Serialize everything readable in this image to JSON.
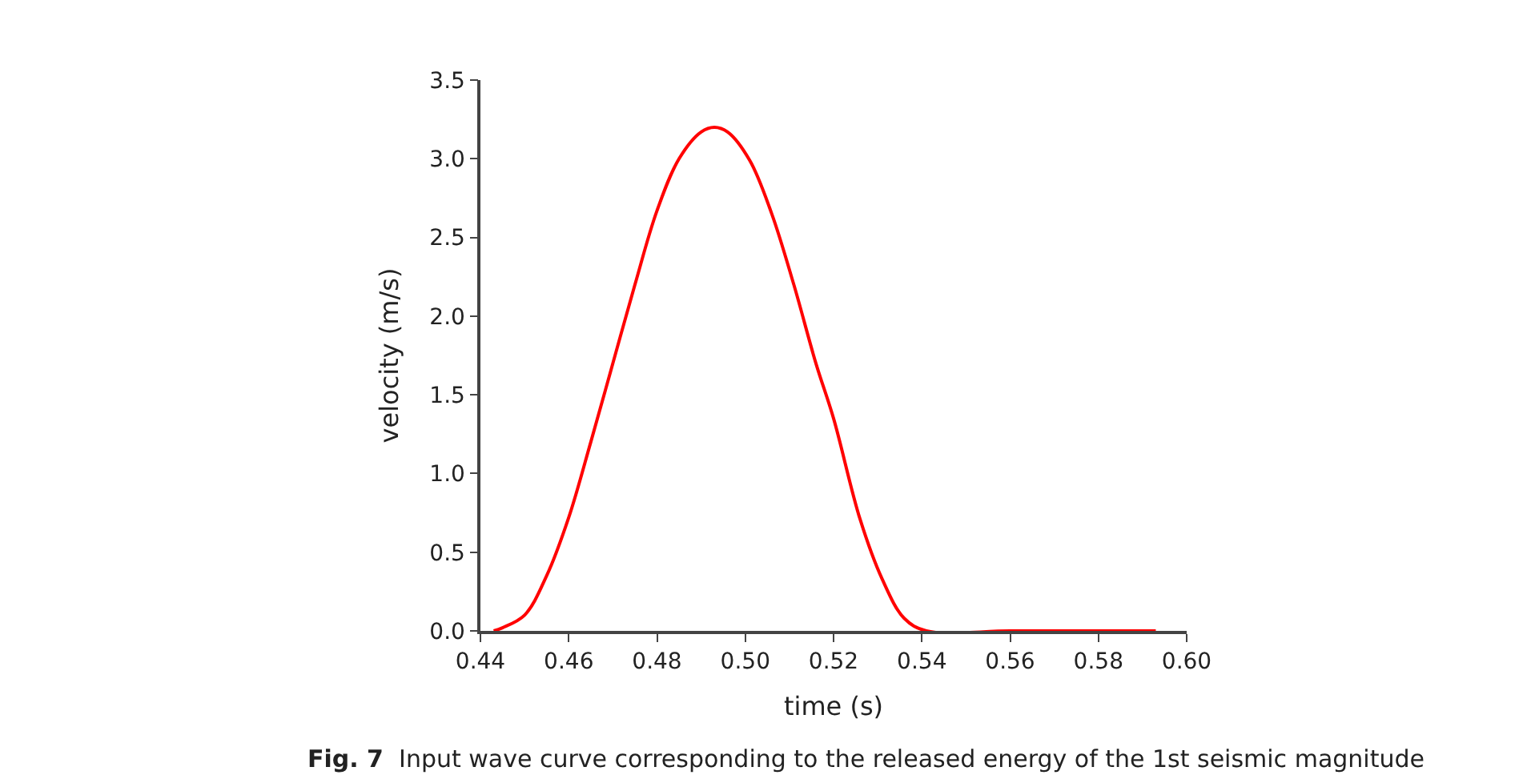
{
  "chart_data": {
    "type": "line",
    "xlabel": "time (s)",
    "ylabel": "velocity (m/s)",
    "annotations": [
      "Fig. 7  Input wave curve corresponding to the released energy of the 1st seismic magnitude"
    ],
    "xlim": [
      0.44,
      0.6
    ],
    "ylim": [
      0,
      3.5
    ],
    "xticks": [
      0.44,
      0.46,
      0.48,
      {
        "value": 0.5,
        "label": "0.50"
      },
      0.52,
      0.54,
      0.56,
      0.58,
      {
        "value": 0.6,
        "label": "0.60"
      }
    ],
    "yticks": [
      {
        "value": 0,
        "label": "0.0"
      },
      0.5,
      {
        "value": 1,
        "label": "1.0"
      },
      1.5,
      {
        "value": 2,
        "label": "2.0"
      },
      2.5,
      {
        "value": 3,
        "label": "3.0"
      },
      3.5
    ],
    "legend": false,
    "series": [
      {
        "color": "#ff0000",
        "x": [
          0.443,
          0.445,
          0.45,
          0.455,
          0.46,
          0.465,
          0.47,
          0.475,
          0.48,
          0.485,
          0.49,
          0.493,
          0.496,
          0.501,
          0.506,
          0.511,
          0.516,
          0.52,
          0.526,
          0.531,
          0.536,
          0.541,
          0.56,
          0.58,
          0.593
        ],
        "values": [
          0,
          0.02,
          0.1,
          0.35,
          0.72,
          1.2,
          1.7,
          2.2,
          2.67,
          3.0,
          3.17,
          3.2,
          3.17,
          2.99,
          2.65,
          2.2,
          1.7,
          1.35,
          0.71,
          0.33,
          0.08,
          0,
          0,
          0,
          0
        ]
      }
    ]
  }
}
